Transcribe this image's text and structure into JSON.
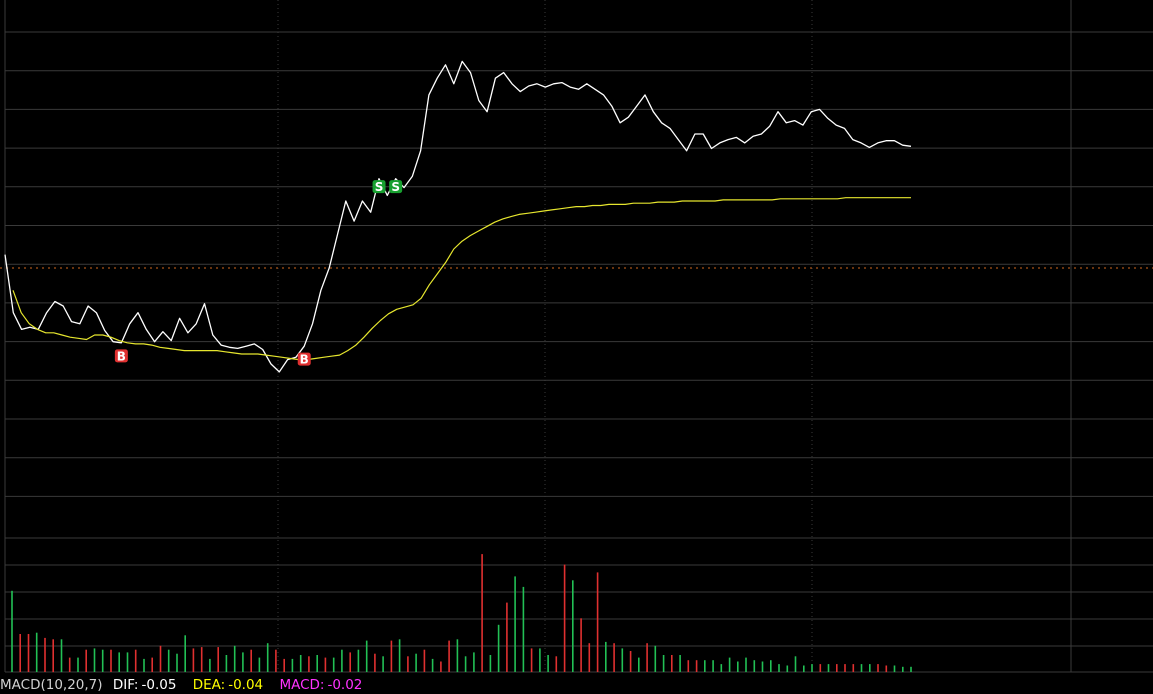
{
  "colors": {
    "price": "#ffffff",
    "average": "#e6e62e",
    "up_bar": "#e03030",
    "down_bar": "#22c055",
    "buy_marker": "#e03030",
    "sell_marker": "#18a030",
    "reference": "#d2691e"
  },
  "indicator": {
    "name": "MACD(10,20,7)",
    "dif_label": "DIF:",
    "dif_value": "-0.05",
    "dea_label": "DEA:",
    "dea_value": "-0.04",
    "macd_label": "MACD:",
    "macd_value": "-0.02"
  },
  "chart_data": {
    "type": "line",
    "grid": true,
    "y_reference": 0.0,
    "price_range": [
      -2.4,
      2.4
    ],
    "volume_range": [
      0,
      100
    ],
    "series": [
      {
        "values": [
          0.12,
          -0.4,
          -0.55,
          -0.53,
          -0.55,
          -0.4,
          -0.3,
          -0.34,
          -0.48,
          -0.5,
          -0.34,
          -0.4,
          -0.56,
          -0.66,
          -0.67,
          -0.5,
          -0.4,
          -0.55,
          -0.66,
          -0.57,
          -0.65,
          -0.45,
          -0.58,
          -0.5,
          -0.32,
          -0.6,
          -0.69,
          -0.71,
          -0.72,
          -0.7,
          -0.68,
          -0.73,
          -0.86,
          -0.93,
          -0.82,
          -0.8,
          -0.7,
          -0.5,
          -0.2,
          0.0,
          0.3,
          0.6,
          0.42,
          0.6,
          0.5,
          0.8,
          0.65,
          0.8,
          0.72,
          0.82,
          1.05,
          1.55,
          1.7,
          1.82,
          1.65,
          1.85,
          1.75,
          1.5,
          1.4,
          1.7,
          1.75,
          1.65,
          1.58,
          1.63,
          1.65,
          1.62,
          1.65,
          1.66,
          1.62,
          1.6,
          1.65,
          1.6,
          1.55,
          1.45,
          1.3,
          1.35,
          1.45,
          1.55,
          1.4,
          1.3,
          1.25,
          1.15,
          1.05,
          1.2,
          1.2,
          1.07,
          1.12,
          1.15,
          1.17,
          1.12,
          1.18,
          1.2,
          1.27,
          1.4,
          1.3,
          1.32,
          1.28,
          1.4,
          1.42,
          1.34,
          1.28,
          1.25,
          1.15,
          1.12,
          1.08,
          1.12,
          1.14,
          1.14,
          1.1,
          1.09
        ]
      },
      {
        "values": [
          -0.2,
          -0.4,
          -0.5,
          -0.55,
          -0.58,
          -0.58,
          -0.6,
          -0.62,
          -0.63,
          -0.64,
          -0.6,
          -0.6,
          -0.62,
          -0.65,
          -0.67,
          -0.68,
          -0.68,
          -0.69,
          -0.71,
          -0.72,
          -0.73,
          -0.74,
          -0.74,
          -0.74,
          -0.74,
          -0.74,
          -0.75,
          -0.76,
          -0.77,
          -0.77,
          -0.77,
          -0.78,
          -0.79,
          -0.8,
          -0.81,
          -0.82,
          -0.82,
          -0.81,
          -0.8,
          -0.79,
          -0.78,
          -0.74,
          -0.69,
          -0.62,
          -0.54,
          -0.47,
          -0.41,
          -0.37,
          -0.35,
          -0.33,
          -0.27,
          -0.15,
          -0.05,
          0.05,
          0.17,
          0.24,
          0.29,
          0.33,
          0.37,
          0.41,
          0.44,
          0.46,
          0.48,
          0.49,
          0.5,
          0.51,
          0.52,
          0.53,
          0.54,
          0.55,
          0.55,
          0.56,
          0.56,
          0.57,
          0.57,
          0.57,
          0.58,
          0.58,
          0.58,
          0.59,
          0.59,
          0.59,
          0.6,
          0.6,
          0.6,
          0.6,
          0.6,
          0.61,
          0.61,
          0.61,
          0.61,
          0.61,
          0.61,
          0.61,
          0.62,
          0.62,
          0.62,
          0.62,
          0.62,
          0.62,
          0.62,
          0.62,
          0.63,
          0.63,
          0.63,
          0.63,
          0.63,
          0.63,
          0.63,
          0.63,
          0.63
        ]
      }
    ],
    "volume": [
      {
        "v": 62,
        "up": false
      },
      {
        "v": 29,
        "up": true
      },
      {
        "v": 29,
        "up": true
      },
      {
        "v": 30,
        "up": false
      },
      {
        "v": 26,
        "up": true
      },
      {
        "v": 25,
        "up": true
      },
      {
        "v": 25,
        "up": false
      },
      {
        "v": 11,
        "up": true
      },
      {
        "v": 11,
        "up": false
      },
      {
        "v": 17,
        "up": true
      },
      {
        "v": 18,
        "up": false
      },
      {
        "v": 17,
        "up": false
      },
      {
        "v": 17,
        "up": true
      },
      {
        "v": 15,
        "up": false
      },
      {
        "v": 15,
        "up": false
      },
      {
        "v": 17,
        "up": true
      },
      {
        "v": 10,
        "up": false
      },
      {
        "v": 11,
        "up": true
      },
      {
        "v": 20,
        "up": true
      },
      {
        "v": 17,
        "up": false
      },
      {
        "v": 14,
        "up": false
      },
      {
        "v": 28,
        "up": false
      },
      {
        "v": 18,
        "up": true
      },
      {
        "v": 19,
        "up": true
      },
      {
        "v": 10,
        "up": false
      },
      {
        "v": 19,
        "up": true
      },
      {
        "v": 13,
        "up": false
      },
      {
        "v": 20,
        "up": false
      },
      {
        "v": 15,
        "up": false
      },
      {
        "v": 17,
        "up": true
      },
      {
        "v": 11,
        "up": false
      },
      {
        "v": 22,
        "up": false
      },
      {
        "v": 17,
        "up": true
      },
      {
        "v": 10,
        "up": true
      },
      {
        "v": 10,
        "up": false
      },
      {
        "v": 13,
        "up": false
      },
      {
        "v": 12,
        "up": true
      },
      {
        "v": 13,
        "up": false
      },
      {
        "v": 11,
        "up": true
      },
      {
        "v": 11,
        "up": false
      },
      {
        "v": 17,
        "up": false
      },
      {
        "v": 15,
        "up": true
      },
      {
        "v": 17,
        "up": false
      },
      {
        "v": 24,
        "up": false
      },
      {
        "v": 14,
        "up": true
      },
      {
        "v": 12,
        "up": false
      },
      {
        "v": 24,
        "up": true
      },
      {
        "v": 25,
        "up": false
      },
      {
        "v": 12,
        "up": true
      },
      {
        "v": 14,
        "up": false
      },
      {
        "v": 17,
        "up": true
      },
      {
        "v": 10,
        "up": false
      },
      {
        "v": 8,
        "up": true
      },
      {
        "v": 24,
        "up": true
      },
      {
        "v": 25,
        "up": false
      },
      {
        "v": 12,
        "up": false
      },
      {
        "v": 15,
        "up": false
      },
      {
        "v": 90,
        "up": true
      },
      {
        "v": 13,
        "up": false
      },
      {
        "v": 36,
        "up": false
      },
      {
        "v": 53,
        "up": true
      },
      {
        "v": 73,
        "up": false
      },
      {
        "v": 65,
        "up": false
      },
      {
        "v": 18,
        "up": true
      },
      {
        "v": 18,
        "up": false
      },
      {
        "v": 13,
        "up": false
      },
      {
        "v": 12,
        "up": true
      },
      {
        "v": 82,
        "up": true
      },
      {
        "v": 70,
        "up": false
      },
      {
        "v": 41,
        "up": true
      },
      {
        "v": 22,
        "up": true
      },
      {
        "v": 76,
        "up": true
      },
      {
        "v": 23,
        "up": false
      },
      {
        "v": 22,
        "up": true
      },
      {
        "v": 18,
        "up": false
      },
      {
        "v": 16,
        "up": true
      },
      {
        "v": 11,
        "up": false
      },
      {
        "v": 22,
        "up": true
      },
      {
        "v": 20,
        "up": false
      },
      {
        "v": 13,
        "up": false
      },
      {
        "v": 13,
        "up": true
      },
      {
        "v": 13,
        "up": false
      },
      {
        "v": 9,
        "up": true
      },
      {
        "v": 9,
        "up": true
      },
      {
        "v": 9,
        "up": false
      },
      {
        "v": 9,
        "up": false
      },
      {
        "v": 6,
        "up": false
      },
      {
        "v": 11,
        "up": false
      },
      {
        "v": 8,
        "up": false
      },
      {
        "v": 11,
        "up": false
      },
      {
        "v": 9,
        "up": false
      },
      {
        "v": 8,
        "up": false
      },
      {
        "v": 9,
        "up": false
      },
      {
        "v": 6,
        "up": false
      },
      {
        "v": 5,
        "up": false
      },
      {
        "v": 12,
        "up": false
      },
      {
        "v": 5,
        "up": false
      },
      {
        "v": 6,
        "up": false
      },
      {
        "v": 6,
        "up": true
      },
      {
        "v": 6,
        "up": false
      },
      {
        "v": 6,
        "up": true
      },
      {
        "v": 6,
        "up": true
      },
      {
        "v": 6,
        "up": true
      },
      {
        "v": 6,
        "up": false
      },
      {
        "v": 6,
        "up": false
      },
      {
        "v": 6,
        "up": true
      },
      {
        "v": 5,
        "up": true
      },
      {
        "v": 5,
        "up": false
      },
      {
        "v": 4,
        "up": false
      },
      {
        "v": 4,
        "up": false
      }
    ],
    "markers": [
      {
        "label": "B",
        "index": 14,
        "type": "buy"
      },
      {
        "label": "B",
        "index": 36,
        "type": "buy"
      },
      {
        "label": "S",
        "index": 45,
        "type": "sell"
      },
      {
        "label": "S",
        "index": 47,
        "type": "sell"
      }
    ]
  }
}
